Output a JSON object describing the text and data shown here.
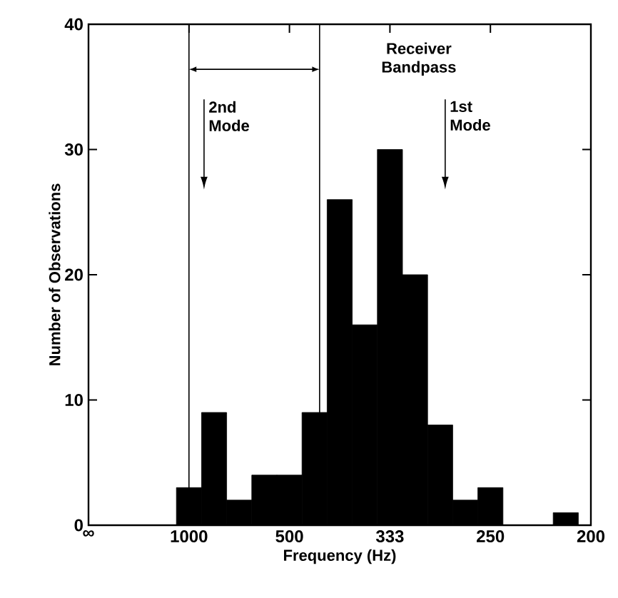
{
  "chart_data": {
    "type": "bar",
    "xlabel": "Frequency (Hz)",
    "ylabel": "Number of Observations",
    "categories": [
      "∞",
      null,
      null,
      null,
      "1000",
      null,
      null,
      null,
      "500",
      null,
      null,
      null,
      "333",
      null,
      null,
      null,
      "250",
      null,
      null,
      null,
      "200"
    ],
    "values": [
      0,
      0,
      0,
      0,
      3,
      9,
      2,
      4,
      4,
      9,
      26,
      16,
      30,
      20,
      8,
      2,
      3,
      0,
      0,
      1,
      0
    ],
    "color": "#000000",
    "ylim": [
      0,
      40
    ],
    "yticks": [
      0,
      10,
      20,
      30,
      40
    ],
    "annotations": [
      "Receiver Bandpass",
      "2nd Mode",
      "1st Mode"
    ]
  }
}
